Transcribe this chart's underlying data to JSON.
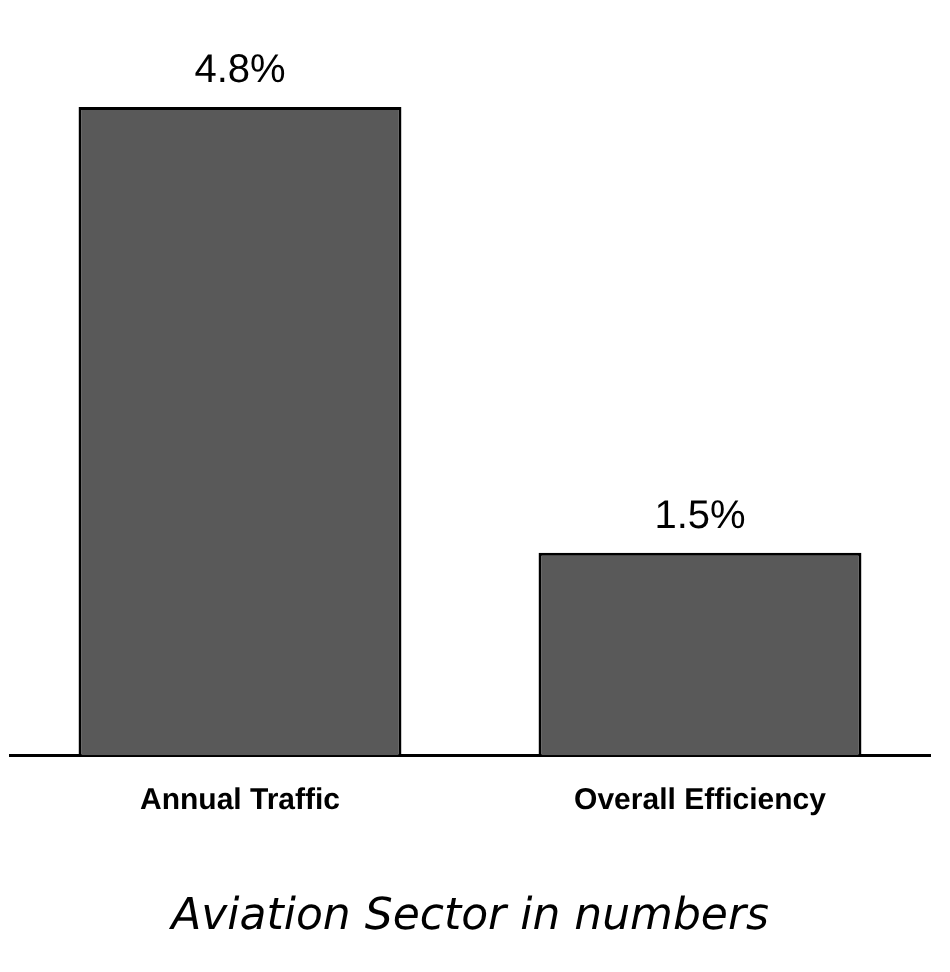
{
  "chart_data": {
    "type": "bar",
    "xlabel": "Aviation Sector in numbers",
    "categories": [
      "Annual Traffic",
      "Overall Efficiency"
    ],
    "values": [
      4.8,
      1.5
    ],
    "color": "#595959",
    "value_labels": [
      "4.8%",
      "1.5%"
    ],
    "grid": false,
    "legend": false
  }
}
